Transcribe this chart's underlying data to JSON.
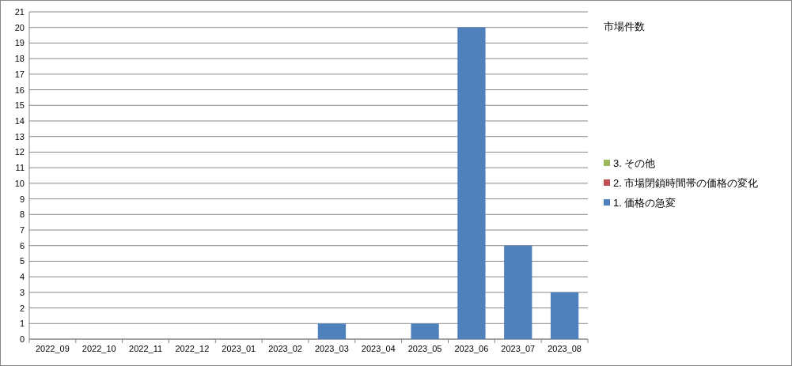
{
  "chart_data": {
    "type": "bar",
    "stacked": true,
    "legend_title": "市場件数",
    "legend": "right",
    "grid": "y",
    "categories": [
      "2022_09",
      "2022_10",
      "2022_11",
      "2022_12",
      "2023_01",
      "2023_02",
      "2023_03",
      "2023_04",
      "2023_05",
      "2023_06",
      "2023_07",
      "2023_08"
    ],
    "ylim": [
      0,
      21
    ],
    "yticks": [
      0,
      1,
      2,
      3,
      4,
      5,
      6,
      7,
      8,
      9,
      10,
      11,
      12,
      13,
      14,
      15,
      16,
      17,
      18,
      19,
      20,
      21
    ],
    "series": [
      {
        "name": "1. 価格の急変",
        "color": "#4f81bd",
        "values": [
          0,
          0,
          0,
          0,
          0,
          0,
          1,
          0,
          1,
          20,
          6,
          3
        ]
      },
      {
        "name": "2. 市場閉鎖時間帯の価格の変化",
        "color": "#c0504d",
        "values": [
          0,
          0,
          0,
          0,
          0,
          0,
          0,
          0,
          0,
          0,
          0,
          0
        ]
      },
      {
        "name": "3. その他",
        "color": "#9bbb59",
        "values": [
          0,
          0,
          0,
          0,
          0,
          0,
          0,
          0,
          0,
          0,
          0,
          0
        ]
      }
    ]
  }
}
